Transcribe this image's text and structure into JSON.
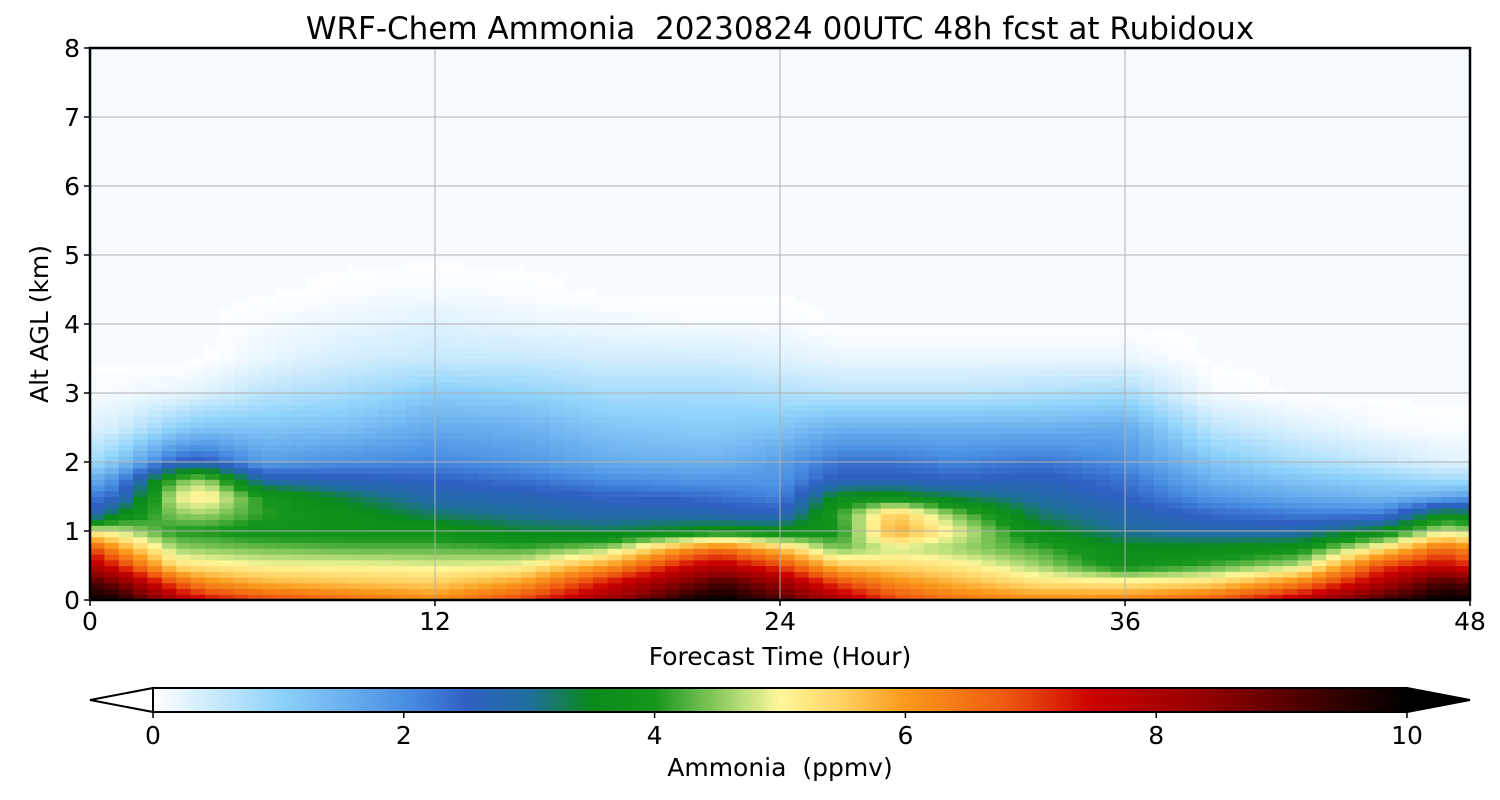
{
  "chart_data": {
    "type": "heatmap",
    "title": "WRF-Chem Ammonia  20230824 00UTC 48h fcst at Rubidoux",
    "xlabel": "Forecast Time (Hour)",
    "ylabel": "Alt AGL (km)",
    "xlim": [
      0,
      48
    ],
    "ylim": [
      0,
      8
    ],
    "x_ticks": [
      "0",
      "12",
      "24",
      "36",
      "48"
    ],
    "y_ticks": [
      "0",
      "1",
      "2",
      "3",
      "4",
      "5",
      "6",
      "7",
      "8"
    ],
    "grid": true,
    "colorbar": {
      "label": "Ammonia  (ppmv)",
      "range": [
        0,
        10
      ],
      "ticks": [
        "0",
        "2",
        "4",
        "6",
        "8",
        "10"
      ],
      "extend": "both",
      "colors": {
        "0": "#ffffff",
        "1": "#8fd3fb",
        "2": "#4a90e2",
        "2.5": "#2f60c4",
        "3": "#1f6e9e",
        "3.5": "#0a8a1a",
        "4": "#16961c",
        "4.7": "#b8de7a",
        "5": "#fff79a",
        "5.5": "#ffd060",
        "6": "#fa9a1c",
        "6.8": "#ef5a10",
        "7.5": "#cc0000",
        "8.5": "#8b0000",
        "9.3": "#400000",
        "10": "#000000"
      }
    },
    "profile_hours": [
      0,
      1,
      3,
      4,
      6,
      9,
      12,
      15,
      18,
      21,
      22,
      24,
      26,
      28,
      30,
      33,
      36,
      39,
      42,
      45,
      47,
      48
    ],
    "profile_altitudes_km": [
      0,
      0.25,
      0.5,
      0.75,
      1.0,
      1.25,
      1.5,
      1.75,
      2.0,
      2.5,
      3.0,
      3.5,
      4.0,
      4.5,
      5.0
    ],
    "concentration_ppmv": [
      [
        10,
        9.3,
        8.0,
        7.0,
        5.0,
        2.5,
        2.2,
        1.5,
        0.8,
        0.3,
        0.1,
        0,
        0,
        0,
        0
      ],
      [
        9.8,
        8.7,
        7.2,
        6.0,
        4.8,
        3.5,
        2.5,
        2.0,
        1.2,
        0.4,
        0.1,
        0,
        0,
        0,
        0
      ],
      [
        8.0,
        6.8,
        5.3,
        4.6,
        4.0,
        4.5,
        4.9,
        4.3,
        2.5,
        1.0,
        0.2,
        0,
        0,
        0,
        0
      ],
      [
        7.5,
        6.2,
        5.2,
        4.5,
        4.0,
        4.6,
        5.2,
        4.6,
        2.6,
        1.2,
        0.3,
        0,
        0,
        0,
        0
      ],
      [
        7.0,
        5.8,
        5.0,
        4.4,
        3.8,
        4.1,
        4.0,
        2.8,
        1.8,
        1.2,
        0.6,
        0.2,
        0.1,
        0,
        0
      ],
      [
        6.6,
        5.6,
        5.0,
        4.3,
        3.8,
        3.7,
        3.3,
        2.6,
        2.0,
        1.3,
        0.8,
        0.4,
        0.2,
        0.05,
        0
      ],
      [
        6.2,
        5.5,
        4.9,
        4.3,
        3.8,
        3.2,
        2.8,
        2.5,
        2.1,
        1.6,
        1.1,
        0.5,
        0.3,
        0.1,
        0
      ],
      [
        7.0,
        6.0,
        5.0,
        4.2,
        3.4,
        3.0,
        2.7,
        2.3,
        1.9,
        1.5,
        1.0,
        0.5,
        0.2,
        0.05,
        0
      ],
      [
        8.2,
        7.4,
        6.0,
        4.6,
        3.3,
        2.8,
        2.5,
        2.0,
        1.6,
        1.2,
        0.8,
        0.4,
        0.15,
        0,
        0
      ],
      [
        9.8,
        8.8,
        7.6,
        6.2,
        3.6,
        2.8,
        2.4,
        1.9,
        1.5,
        1.1,
        0.8,
        0.4,
        0.1,
        0,
        0
      ],
      [
        10,
        9.3,
        7.8,
        6.5,
        3.7,
        2.7,
        2.3,
        1.9,
        1.5,
        1.1,
        0.8,
        0.4,
        0.1,
        0,
        0
      ],
      [
        9.2,
        8.3,
        7.0,
        5.6,
        3.6,
        2.6,
        2.1,
        1.9,
        1.8,
        1.2,
        0.7,
        0.3,
        0.1,
        0,
        0
      ],
      [
        8.0,
        7.0,
        5.6,
        4.4,
        3.9,
        4.1,
        3.6,
        2.6,
        2.3,
        1.5,
        0.6,
        0.2,
        0,
        0,
        0
      ],
      [
        7.0,
        6.2,
        5.4,
        4.8,
        5.9,
        5.6,
        3.7,
        2.6,
        2.3,
        1.5,
        0.6,
        0.2,
        0,
        0,
        0
      ],
      [
        6.5,
        5.8,
        5.2,
        4.6,
        5.0,
        4.5,
        3.3,
        2.5,
        2.1,
        1.5,
        0.6,
        0.2,
        0,
        0,
        0
      ],
      [
        6.2,
        5.3,
        4.6,
        4.2,
        3.6,
        3.2,
        2.9,
        2.6,
        2.3,
        1.5,
        0.7,
        0.2,
        0,
        0,
        0
      ],
      [
        6.3,
        5.2,
        3.8,
        3.6,
        3.0,
        2.8,
        2.5,
        2.3,
        2.0,
        1.6,
        0.8,
        0.2,
        0,
        0,
        0
      ],
      [
        6.8,
        5.4,
        4.2,
        3.6,
        2.8,
        2.4,
        1.9,
        1.5,
        1.2,
        0.6,
        0.1,
        0,
        0,
        0,
        0
      ],
      [
        7.8,
        6.3,
        4.7,
        3.8,
        2.8,
        2.2,
        1.6,
        1.2,
        0.8,
        0.3,
        0,
        0,
        0,
        0,
        0
      ],
      [
        9.3,
        8.0,
        7.0,
        5.3,
        3.6,
        2.2,
        1.4,
        1.0,
        0.5,
        0.1,
        0,
        0,
        0,
        0,
        0
      ],
      [
        10,
        9.3,
        7.6,
        6.6,
        4.8,
        3.6,
        1.6,
        0.8,
        0.3,
        0.05,
        0,
        0,
        0,
        0,
        0
      ],
      [
        10,
        9.0,
        7.2,
        6.2,
        4.6,
        3.4,
        1.8,
        0.8,
        0.3,
        0.05,
        0,
        0,
        0,
        0,
        0
      ]
    ]
  }
}
